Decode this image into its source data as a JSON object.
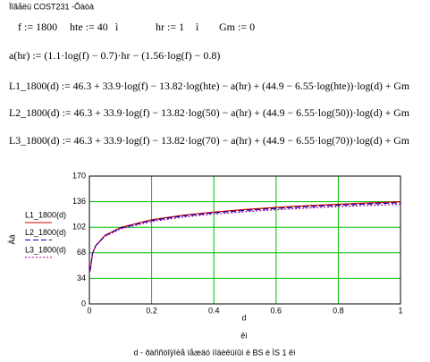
{
  "header": {
    "title": "Ïîãåëü COST231 -Õàòà"
  },
  "definitions": [
    "f := 1800",
    "hte := 40",
    "ì",
    "hr := 1",
    "ì",
    "Gm := 0"
  ],
  "formulas": [
    "a(hr) := (1.1·log(f) − 0.7)·hr − (1.56·log(f) − 0.8)",
    "L1_1800(d) := 46.3 + 33.9·log(f) − 13.82·log(hte) − a(hr) + (44.9 − 6.55·log(hte))·log(d) + Gm",
    "L2_1800(d) := 46.3 + 33.9·log(f) − 13.82·log(50) − a(hr) + (44.9 − 6.55·log(50))·log(d) + Gm",
    "L3_1800(d) := 46.3 + 33.9·log(f) − 13.82·log(70) − a(hr) + (44.9 − 6.55·log(70))·log(d) + Gm"
  ],
  "chart_data": {
    "type": "line",
    "xlabel": "d",
    "xunit": "êì",
    "ylabel": "Äá",
    "caption": "d - ðàññòîÿíèå ìåæäó ìîáèëüíûì è BS è ÌS 1 êì",
    "x": [
      0.002,
      0.01,
      0.02,
      0.05,
      0.1,
      0.2,
      0.3,
      0.4,
      0.5,
      0.6,
      0.7,
      0.8,
      0.9,
      1.0
    ],
    "series": [
      {
        "name": "L1_1800(d)",
        "color": "#d00000",
        "dash": "",
        "values": [
          43.0,
          67.1,
          77.4,
          91.1,
          101.5,
          111.9,
          117.9,
          122.2,
          125.5,
          128.3,
          130.6,
          132.6,
          134.3,
          135.9
        ]
      },
      {
        "name": "L2_1800(d)",
        "color": "#0000c0",
        "dash": "6 3",
        "values": [
          43.4,
          67.0,
          77.2,
          90.6,
          100.8,
          111.0,
          116.9,
          121.1,
          124.4,
          127.1,
          129.3,
          131.3,
          133.0,
          134.6
        ]
      },
      {
        "name": "L3_1800(d)",
        "color": "#a000a0",
        "dash": "2 2",
        "values": [
          44.0,
          66.9,
          76.8,
          89.9,
          99.7,
          109.6,
          115.4,
          119.5,
          122.7,
          125.3,
          127.5,
          129.4,
          131.0,
          132.6
        ]
      }
    ],
    "xlim": [
      0,
      1
    ],
    "xticks": [
      0,
      0.2,
      0.4,
      0.6,
      0.8,
      1
    ],
    "ylim": [
      0,
      170
    ],
    "yticks": [
      0,
      34,
      68,
      102,
      136,
      170
    ],
    "grid": true,
    "grid_color": "#00c000"
  }
}
